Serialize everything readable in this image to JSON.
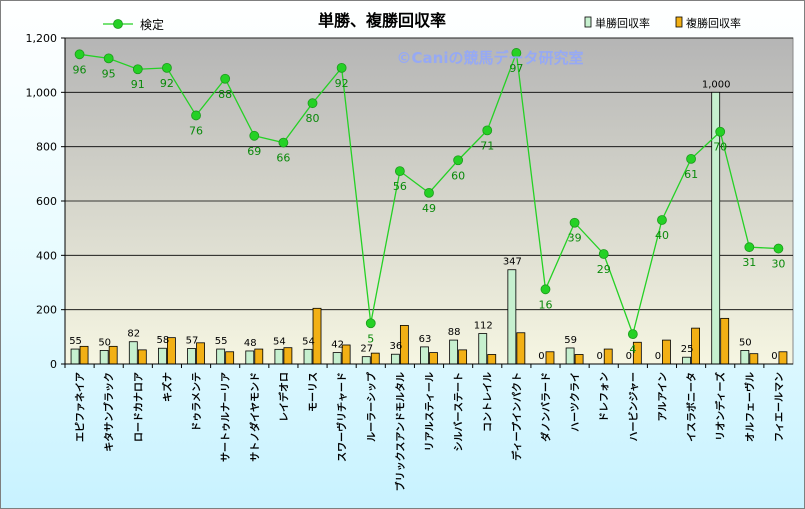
{
  "chart_data": {
    "type": "bar",
    "title": "単勝、複勝回収率",
    "watermark": "©Caniの競馬データ研究室",
    "categories": [
      "エピファネイア",
      "キタサンブラック",
      "ロードカナロア",
      "キズナ",
      "ドゥラメンテ",
      "サートゥルナーリア",
      "サトノダイヤモンド",
      "レイデオロ",
      "モーリス",
      "スワーヴリチャード",
      "ルーラーシップ",
      "ブリックスアンドモルタル",
      "リアルスティール",
      "シルバーステート",
      "コントレイル",
      "ディープインパクト",
      "ダノンバラード",
      "ハーツクライ",
      "ドレフォン",
      "ハービンジャー",
      "アルアイン",
      "イスラボニータ",
      "リオンディーズ",
      "オルフェーヴル",
      "フィエールマン"
    ],
    "series": [
      {
        "name": "単勝回収率",
        "kind": "bar",
        "color": "#c6f0cf",
        "values": [
          55,
          50,
          82,
          58,
          57,
          55,
          48,
          54,
          54,
          42,
          27,
          36,
          63,
          88,
          112,
          347,
          0,
          59,
          0,
          0,
          0,
          25,
          1000,
          50,
          0
        ]
      },
      {
        "name": "複勝回収率",
        "kind": "bar",
        "color": "#f2b015",
        "values": [
          65,
          65,
          52,
          97,
          78,
          45,
          55,
          60,
          205,
          70,
          40,
          142,
          42,
          52,
          35,
          115,
          45,
          35,
          55,
          80,
          88,
          132,
          168,
          38,
          45
        ]
      },
      {
        "name": "検定",
        "kind": "line",
        "color": "#25d125",
        "values": [
          96,
          95,
          91,
          92,
          76,
          88,
          69,
          66,
          80,
          92,
          5,
          56,
          49,
          60,
          71,
          97,
          16,
          39,
          29,
          4,
          40,
          61,
          70,
          31,
          30
        ],
        "positions": [
          1140,
          1125,
          1085,
          1090,
          915,
          1050,
          840,
          815,
          960,
          1090,
          150,
          710,
          630,
          750,
          860,
          1145,
          275,
          520,
          405,
          110,
          530,
          755,
          855,
          430,
          425
        ]
      }
    ],
    "bar_labels": [
      "55",
      "50",
      "82",
      "58",
      "57",
      "55",
      "48",
      "54",
      "54",
      "42",
      "27",
      "36",
      "63",
      "88",
      "112",
      "347",
      "0",
      "59",
      "0",
      "0",
      "0",
      "25",
      "1,000",
      "50",
      "0"
    ],
    "line_labels": [
      "96",
      "95",
      "91",
      "92",
      "76",
      "88",
      "69",
      "66",
      "80",
      "92",
      "5",
      "56",
      "49",
      "60",
      "71",
      "97",
      "16",
      "39",
      "29",
      "4",
      "40",
      "61",
      "70",
      "31",
      "30"
    ],
    "y_ticks": [
      "0",
      "200",
      "400",
      "600",
      "800",
      "1,000",
      "1,200"
    ],
    "ylim": [
      0,
      1200
    ],
    "grid": true,
    "legend": "top"
  }
}
